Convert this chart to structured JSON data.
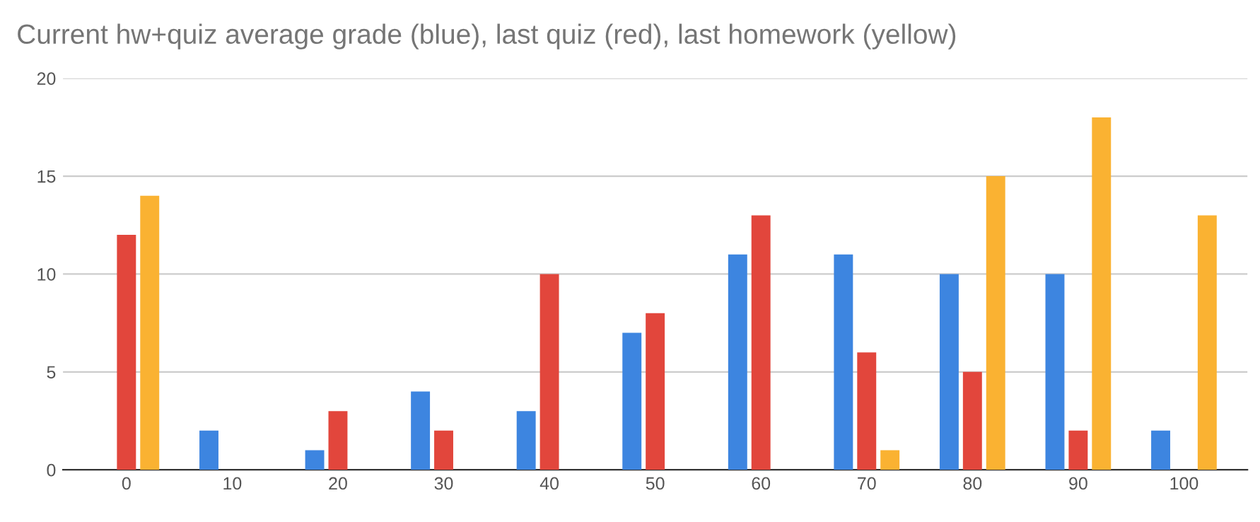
{
  "chart_data": {
    "type": "bar",
    "title": "Current hw+quiz average grade (blue), last quiz (red), last homework (yellow)",
    "categories": [
      "0",
      "10",
      "20",
      "30",
      "40",
      "50",
      "60",
      "70",
      "80",
      "90",
      "100"
    ],
    "series": [
      {
        "color": "#3d85e0",
        "values": [
          0,
          2,
          1,
          4,
          3,
          7,
          11,
          11,
          10,
          10,
          2
        ]
      },
      {
        "color": "#e2463c",
        "values": [
          12,
          0,
          3,
          2,
          10,
          8,
          13,
          6,
          5,
          2,
          0
        ]
      },
      {
        "color": "#fab232",
        "values": [
          14,
          0,
          0,
          0,
          0,
          0,
          0,
          1,
          15,
          18,
          13
        ]
      }
    ],
    "ylim": [
      0,
      20
    ],
    "yticks": [
      0,
      5,
      10,
      15,
      20
    ],
    "grid": "y"
  }
}
